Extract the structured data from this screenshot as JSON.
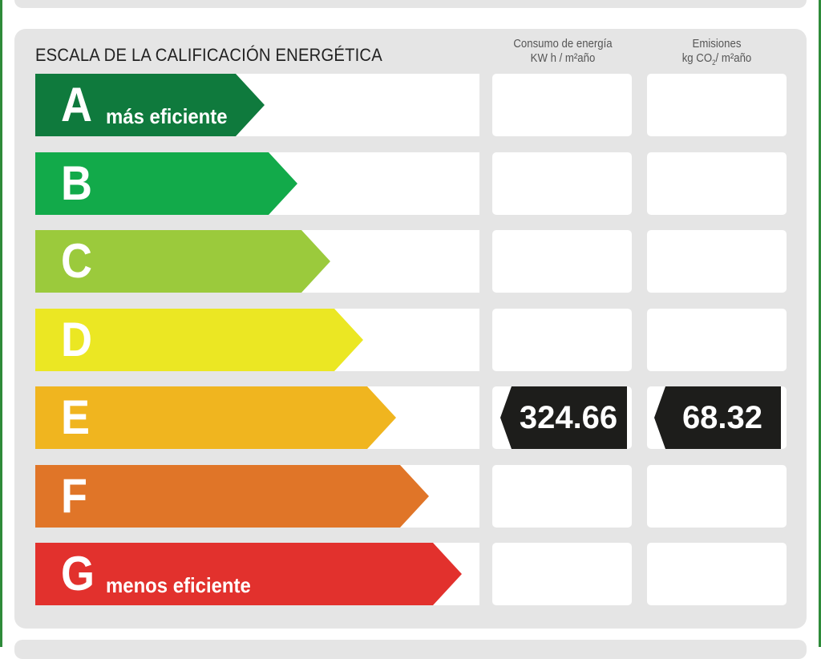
{
  "scale": {
    "title": "ESCALA DE LA CALIFICACIÓN ENERGÉTICA",
    "consumption_header": [
      "Consumo de energía",
      "KW h / m²año"
    ],
    "emissions_header": [
      "Emisiones",
      "kg CO",
      "2",
      "/ m²año"
    ],
    "ratings": [
      {
        "letter": "A",
        "subtitle": "más eficiente",
        "color": "#0f7a3d"
      },
      {
        "letter": "B",
        "subtitle": "",
        "color": "#12aa4a"
      },
      {
        "letter": "C",
        "subtitle": "",
        "color": "#9bca3c"
      },
      {
        "letter": "D",
        "subtitle": "",
        "color": "#ebe723"
      },
      {
        "letter": "E",
        "subtitle": "",
        "color": "#f0b51f"
      },
      {
        "letter": "F",
        "subtitle": "",
        "color": "#e07528"
      },
      {
        "letter": "G",
        "subtitle": "menos eficiente",
        "color": "#e2312d"
      }
    ],
    "current": {
      "rating": "E",
      "consumption": "324.66",
      "emissions": "68.32",
      "marker_color": "#1d1d1b"
    }
  }
}
